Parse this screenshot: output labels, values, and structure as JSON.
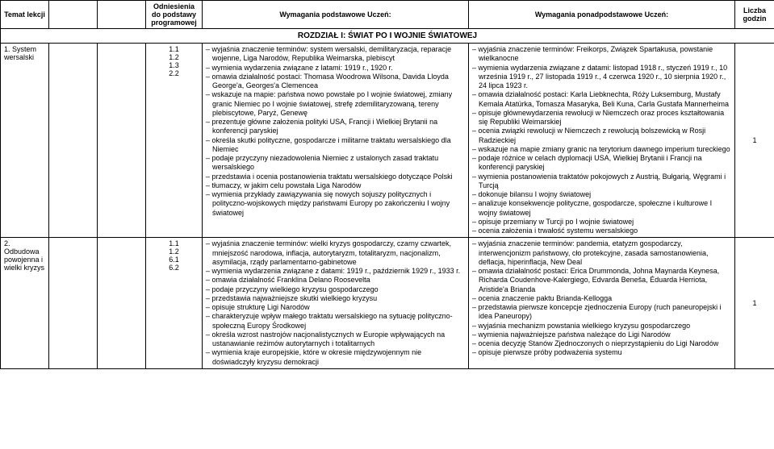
{
  "headers": {
    "topic": "Temat lekcji",
    "ref": "Odniesienia do podstawy programowej",
    "basic": "Wymagania podstawowe Uczeń:",
    "adv": "Wymagania ponadpodstawowe Uczeń:",
    "hours": "Liczba godzin"
  },
  "section": "ROZDZIAŁ I: ŚWIAT PO I WOJNIE ŚWIATOWEJ",
  "rows": [
    {
      "topic": "1. System wersalski",
      "refs": [
        "1.1",
        "1.2",
        "1.3",
        "2.2"
      ],
      "basic": [
        "wyjaśnia znaczenie terminów: system wersalski, demilitaryzacja, reparacje wojenne, Liga Narodów, Republika Weimarska, plebiscyt",
        "wymienia wydarzenia związane z latami: 1919 r., 1920 r.",
        "omawia działalność postaci: Thomasa Woodrowa Wilsona, Davida Lloyda George'a, Georges'a Clemencea",
        "wskazuje na mapie: państwa nowo powstałe po I wojnie światowej, zmiany granic Niemiec po I wojnie światowej, strefę zdemilitaryzowaną, tereny plebiscytowe, Paryż, Genewę",
        "prezentuje główne założenia polityki USA, Francji i Wielkiej Brytanii na konferencji paryskiej",
        "określa skutki polityczne, gospodarcze i militarne traktatu wersalskiego dla Niemiec",
        "podaje przyczyny niezadowolenia Niemiec z ustalonych zasad traktatu wersalskiego",
        "przedstawia i ocenia postanowienia traktatu wersalskiego dotyczące Polski",
        "tłumaczy, w jakim celu powstała Liga Narodów",
        "wymienia przykłady zawiązywania się nowych sojuszy politycznych i polityczno-wojskowych między państwami Europy po zakończeniu I wojny światowej"
      ],
      "adv": [
        "wyjaśnia znaczenie terminów: Freikorps, Związek Spartakusa, powstanie wielkanocne",
        "wymienia wydarzenia związane z datami: listopad 1918 r., styczeń 1919 r., 10 września 1919 r., 27 listopada 1919 r., 4 czerwca 1920 r., 10 sierpnia 1920 r., 24 lipca 1923 r.",
        "omawia działalność postaci: Karla Liebknechta, Róży Luksemburg, Mustafy Kemala Atatürka, Tomasza Masaryka, Beli Kuna, Carla Gustafa Mannerheima",
        "opisuje głównewydarzenia rewolucji w Niemczech oraz proces kształtowania się Republiki Weimarskiej",
        "ocenia związki rewolucji w Niemczech z rewolucją bolszewicką w Rosji Radzieckiej",
        "wskazuje na mapie zmiany granic na terytorium dawnego imperium tureckiego",
        "podaje różnice w celach dyplomacji USA, Wielkiej Brytanii i Francji na konferencji paryskiej",
        "wymienia postanowienia traktatów pokojowych z Austrią, Bułgarią, Węgrami i Turcją",
        "dokonuje bilansu I wojny światowej",
        "analizuje konsekwencje polityczne, gospodarcze, społeczne i kulturowe I wojny światowej",
        "opisuje przemiany w Turcji po I wojnie światowej",
        "ocenia założenia i trwałość systemu wersalskiego"
      ],
      "hours": "1"
    },
    {
      "topic": "2. Odbudowa powojenna i wielki kryzys",
      "refs": [
        "1.1",
        "1.2",
        "6.1",
        "6.2"
      ],
      "basic": [
        "wyjaśnia znaczenie terminów: wielki kryzys gospodarczy, czarny czwartek, mniejszość narodowa, inflacja, autorytaryzm, totalitaryzm, nacjonalizm, asymilacja, rządy parlamentarno-gabinetowe",
        "wymienia wydarzenia związane z datami: 1919 r., październik 1929 r., 1933 r.",
        "omawia działalność Franklina Delano Roosevelta",
        "podaje przyczyny wielkiego kryzysu gospodarczego",
        "przedstawia najważniejsze skutki wielkiego kryzysu",
        "opisuje strukturę Ligi Narodów",
        "charakteryzuje wpływ małego traktatu wersalskiego na sytuację polityczno-społeczną Europy Środkowej",
        "określa wzrost nastrojów nacjonalistycznych w Europie wpływających na ustanawianie reżimów autorytarnych i totalitarnych",
        "wymienia kraje europejskie, które w okresie międzywojennym nie doświadczyły kryzysu demokracji"
      ],
      "adv": [
        "wyjaśnia znaczenie terminów: pandemia, etatyzm gospodarczy, interwencjonizm państwowy, cło protekcyjne, zasada samostanowienia, deflacja, hiperinflacja, New Deal",
        "omawia działalność postaci: Erica Drummonda, Johna Maynarda Keynesa, Richarda Coudenhove-Kalergiego, Edvarda Beneša, Éduarda Herriota, Aristide'a Brianda",
        "ocenia znaczenie paktu Brianda-Kellogga",
        "przedstawia pierwsze koncepcje zjednoczenia Europy (ruch paneuropejski i idea Paneuropy)",
        "wyjaśnia mechanizm powstania wielkiego kryzysu gospodarczego",
        "wymienia najważniejsze państwa należące do Ligi Narodów",
        "ocenia decyzję Stanów Zjednoczonych o nieprzystąpieniu do Ligi Narodów",
        "opisuje pierwsze próby podważenia systemu"
      ],
      "hours": "1"
    }
  ]
}
